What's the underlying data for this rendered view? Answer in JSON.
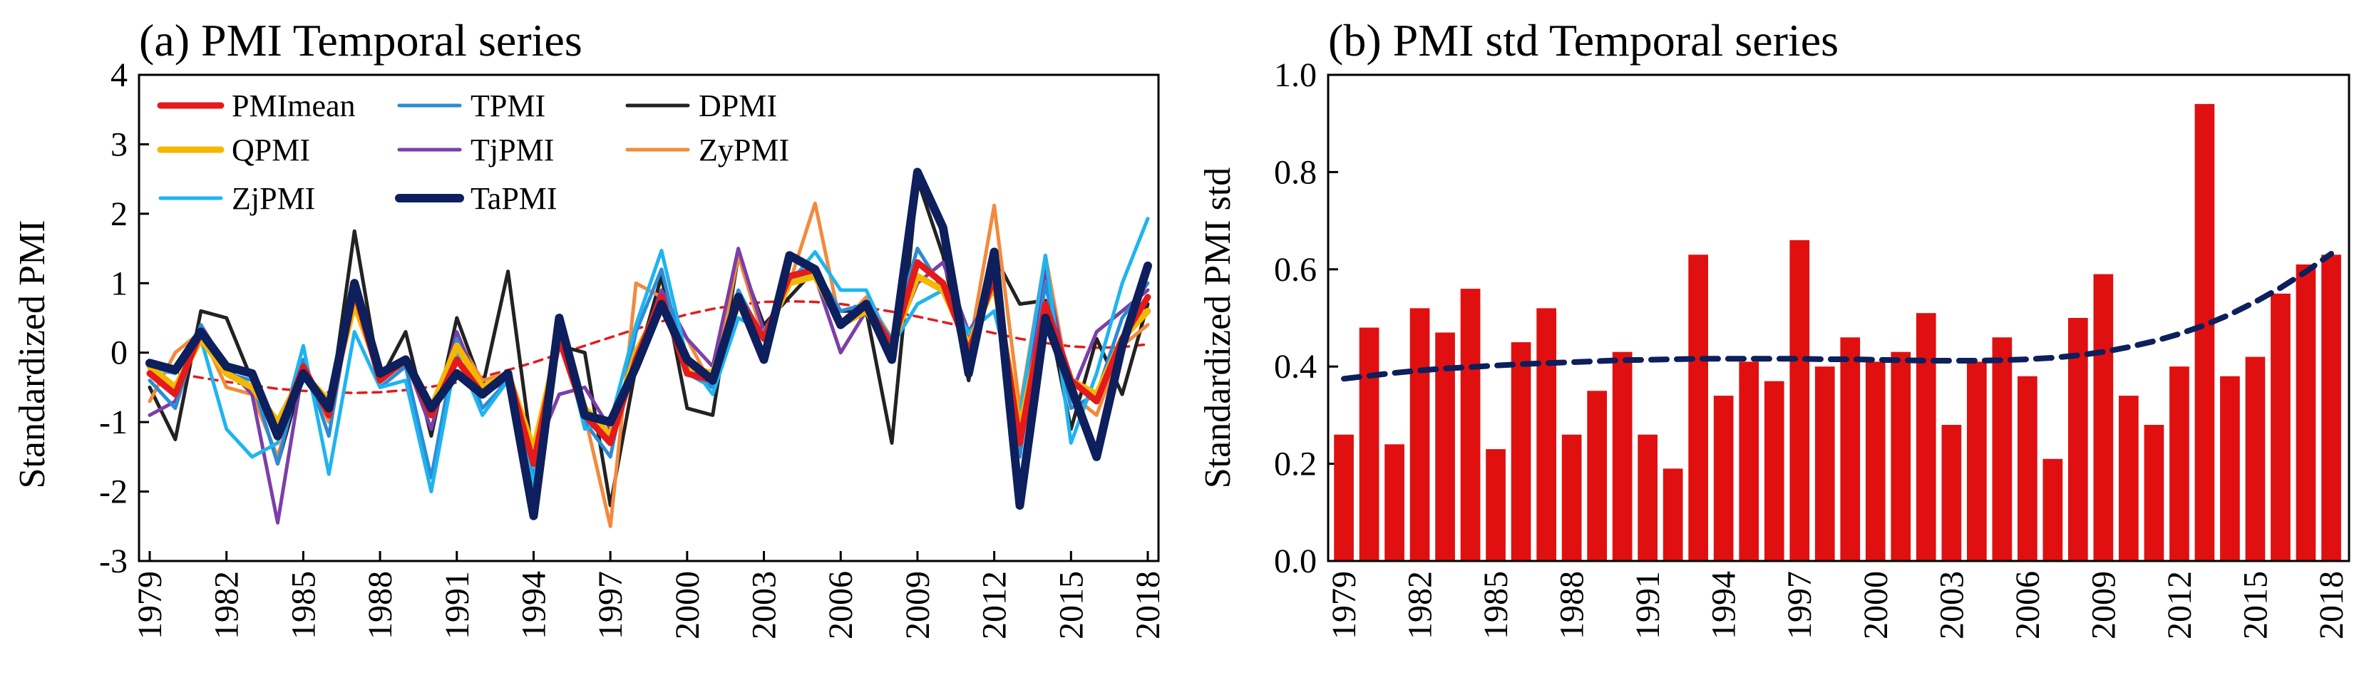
{
  "chart_data": [
    {
      "type": "line",
      "title": "(a)  PMI Temporal series",
      "ylabel": "Standardized PMI",
      "xlabel": "",
      "ylim": [
        -3,
        4
      ],
      "yticks": [
        "-3",
        "-2",
        "-1",
        "0",
        "1",
        "2",
        "3",
        "4"
      ],
      "xticks": [
        "1979",
        "1982",
        "1985",
        "1988",
        "1991",
        "1994",
        "1997",
        "2000",
        "2003",
        "2006",
        "2009",
        "2012",
        "2015",
        "2018"
      ],
      "years": [
        1979,
        1980,
        1981,
        1982,
        1983,
        1984,
        1985,
        1986,
        1987,
        1988,
        1989,
        1990,
        1991,
        1992,
        1993,
        1994,
        1995,
        1996,
        1997,
        1998,
        1999,
        2000,
        2001,
        2002,
        2003,
        2004,
        2005,
        2006,
        2007,
        2008,
        2009,
        2010,
        2011,
        2012,
        2013,
        2014,
        2015,
        2016,
        2017,
        2018
      ],
      "series": [
        {
          "name": "PMImean",
          "color": "#e41a1c",
          "width": 9,
          "dash": "",
          "values": [
            -0.3,
            -0.6,
            0.3,
            -0.2,
            -0.3,
            -1.2,
            -0.2,
            -0.9,
            0.9,
            -0.4,
            -0.1,
            -0.9,
            -0.1,
            -0.6,
            -0.3,
            -1.6,
            0.2,
            -0.9,
            -1.3,
            -0.1,
            0.8,
            -0.3,
            -0.4,
            0.8,
            0.2,
            1.1,
            1.2,
            0.4,
            0.7,
            0.1,
            1.3,
            1.0,
            0.0,
            1.1,
            -1.3,
            0.7,
            -0.4,
            -0.7,
            0.2,
            0.8
          ]
        },
        {
          "name": "TPMI",
          "color": "#2b8cd6",
          "width": 5,
          "dash": "",
          "values": [
            -0.4,
            -0.8,
            0.4,
            -0.3,
            -0.4,
            -1.6,
            -0.1,
            -1.2,
            1.0,
            -0.5,
            -0.2,
            -1.8,
            0.2,
            -0.8,
            -0.4,
            -1.8,
            0.4,
            -1.0,
            -1.5,
            0.3,
            1.2,
            -0.3,
            -0.5,
            0.9,
            0.2,
            1.0,
            1.2,
            0.6,
            0.7,
            0.2,
            1.5,
            0.9,
            0.2,
            1.0,
            -1.5,
            1.0,
            -0.8,
            -0.6,
            0.5,
            1.0
          ]
        },
        {
          "name": "DPMI",
          "color": "#222222",
          "width": 5,
          "dash": "",
          "values": [
            -0.5,
            -1.25,
            0.6,
            0.5,
            -0.4,
            -1.6,
            -0.3,
            -0.9,
            1.75,
            -0.4,
            0.3,
            -1.2,
            0.5,
            -0.5,
            1.17,
            -1.6,
            0.1,
            0.0,
            -2.2,
            -0.2,
            1.1,
            -0.8,
            -0.9,
            1.4,
            0.4,
            0.8,
            1.2,
            0.6,
            0.6,
            -1.3,
            2.5,
            1.4,
            -0.4,
            1.4,
            0.7,
            0.75,
            -1.1,
            0.2,
            -0.6,
            0.7
          ]
        },
        {
          "name": "QPMI",
          "color": "#f5b800",
          "width": 9,
          "dash": "",
          "values": [
            -0.2,
            -0.5,
            0.2,
            -0.3,
            -0.5,
            -1.0,
            -0.3,
            -0.7,
            0.7,
            -0.3,
            -0.1,
            -0.8,
            0.1,
            -0.5,
            -0.3,
            -1.4,
            0.2,
            -0.8,
            -1.2,
            0.0,
            0.7,
            -0.2,
            -0.3,
            0.7,
            0.2,
            1.0,
            1.1,
            0.4,
            0.6,
            0.1,
            1.1,
            0.9,
            0.1,
            1.0,
            -1.1,
            0.6,
            -0.4,
            -0.6,
            0.2,
            0.6
          ]
        },
        {
          "name": "TjPMI",
          "color": "#7b3fa8",
          "width": 5,
          "dash": "",
          "values": [
            -0.9,
            -0.7,
            0.4,
            -0.2,
            -0.6,
            -2.45,
            -0.2,
            -0.9,
            1.0,
            -0.4,
            -0.1,
            -1.1,
            0.3,
            -0.6,
            -0.4,
            -1.5,
            -0.6,
            -0.5,
            -1.1,
            -0.1,
            0.9,
            0.2,
            -0.2,
            1.5,
            0.3,
            1.0,
            1.1,
            0.0,
            0.6,
            0.1,
            1.0,
            1.3,
            0.3,
            0.9,
            -1.3,
            1.2,
            -0.6,
            0.3,
            0.6,
            0.9
          ]
        },
        {
          "name": "ZyPMI",
          "color": "#f28a3c",
          "width": 5,
          "dash": "",
          "values": [
            -0.7,
            0.0,
            0.3,
            -0.5,
            -0.6,
            -1.5,
            -0.2,
            -1.0,
            0.8,
            -0.3,
            -0.2,
            -0.9,
            0.2,
            -0.4,
            -0.3,
            -1.5,
            0.3,
            -0.9,
            -2.5,
            1.0,
            0.8,
            0.2,
            -0.5,
            1.4,
            0.2,
            1.0,
            2.15,
            0.4,
            0.8,
            0.2,
            1.5,
            0.9,
            0.0,
            2.12,
            -0.8,
            1.4,
            -0.6,
            -0.9,
            0.1,
            0.4
          ]
        },
        {
          "name": "ZjPMI",
          "color": "#1eb4f0",
          "width": 5,
          "dash": "",
          "values": [
            -0.2,
            -0.3,
            0.2,
            -1.1,
            -1.5,
            -1.3,
            0.1,
            -1.75,
            0.3,
            -0.5,
            -0.4,
            -2.0,
            0.0,
            -0.9,
            -0.4,
            -1.9,
            0.4,
            -1.1,
            -1.0,
            0.4,
            1.47,
            -0.1,
            -0.6,
            0.5,
            0.3,
            1.0,
            1.45,
            0.9,
            0.9,
            0.1,
            0.7,
            0.9,
            0.3,
            0.6,
            -0.9,
            1.4,
            -1.3,
            -0.3,
            1.0,
            1.93
          ]
        },
        {
          "name": "TaPMI",
          "color": "#0d1f5c",
          "width": 12,
          "dash": "",
          "values": [
            -0.15,
            -0.25,
            0.3,
            -0.2,
            -0.3,
            -1.2,
            -0.3,
            -0.8,
            1.0,
            -0.3,
            -0.1,
            -0.8,
            -0.3,
            -0.6,
            -0.3,
            -2.35,
            0.5,
            -0.9,
            -1.0,
            -0.2,
            0.7,
            -0.1,
            -0.4,
            0.8,
            -0.1,
            1.4,
            1.2,
            0.4,
            0.7,
            -0.1,
            2.6,
            1.8,
            -0.3,
            1.45,
            -2.2,
            0.5,
            -0.5,
            -1.5,
            0.1,
            1.25
          ]
        },
        {
          "name": "PMImean fit",
          "color": "#e41a1c",
          "width": 3.5,
          "dash": "12,9",
          "values": [
            -0.25,
            -0.3,
            -0.36,
            -0.42,
            -0.47,
            -0.52,
            -0.55,
            -0.57,
            -0.58,
            -0.57,
            -0.54,
            -0.49,
            -0.43,
            -0.35,
            -0.25,
            -0.14,
            -0.02,
            0.1,
            0.22,
            0.34,
            0.45,
            0.55,
            0.63,
            0.69,
            0.73,
            0.74,
            0.73,
            0.7,
            0.65,
            0.59,
            0.52,
            0.44,
            0.36,
            0.28,
            0.2,
            0.14,
            0.09,
            0.07,
            0.08,
            0.12
          ]
        }
      ],
      "legend": [
        "PMImean",
        "TPMI",
        "DPMI",
        "QPMI",
        "TjPMI",
        "ZyPMI",
        "ZjPMI",
        "TaPMI"
      ],
      "legend_placement": "top-left"
    },
    {
      "type": "bar",
      "title": "(b) PMI std Temporal series",
      "ylabel": "Standardized PMI std",
      "xlabel": "",
      "ylim": [
        0,
        1.0
      ],
      "yticks": [
        "0.0",
        "0.2",
        "0.4",
        "0.6",
        "0.8",
        "1.0"
      ],
      "xticks": [
        "1979",
        "1982",
        "1985",
        "1988",
        "1991",
        "1994",
        "1997",
        "2000",
        "2003",
        "2006",
        "2009",
        "2012",
        "2015",
        "2018"
      ],
      "years": [
        1979,
        1980,
        1981,
        1982,
        1983,
        1984,
        1985,
        1986,
        1987,
        1988,
        1989,
        1990,
        1991,
        1992,
        1993,
        1994,
        1995,
        1996,
        1997,
        1998,
        1999,
        2000,
        2001,
        2002,
        2003,
        2004,
        2005,
        2006,
        2007,
        2008,
        2009,
        2010,
        2011,
        2012,
        2013,
        2014,
        2015,
        2016,
        2017,
        2018
      ],
      "values": [
        0.26,
        0.48,
        0.24,
        0.52,
        0.47,
        0.56,
        0.23,
        0.45,
        0.52,
        0.26,
        0.35,
        0.43,
        0.26,
        0.19,
        0.63,
        0.34,
        0.41,
        0.37,
        0.66,
        0.4,
        0.46,
        0.41,
        0.43,
        0.51,
        0.28,
        0.41,
        0.46,
        0.38,
        0.21,
        0.5,
        0.59,
        0.34,
        0.28,
        0.4,
        0.94,
        0.38,
        0.42,
        0.55,
        0.61,
        0.63
      ],
      "bar_color": "#e01010",
      "trend": {
        "name": "trend",
        "color": "#0d1f5c",
        "values": [
          0.375,
          0.381,
          0.387,
          0.392,
          0.396,
          0.399,
          0.402,
          0.405,
          0.407,
          0.409,
          0.411,
          0.413,
          0.414,
          0.415,
          0.416,
          0.416,
          0.416,
          0.416,
          0.416,
          0.415,
          0.415,
          0.414,
          0.413,
          0.412,
          0.412,
          0.412,
          0.413,
          0.415,
          0.418,
          0.423,
          0.43,
          0.44,
          0.452,
          0.467,
          0.485,
          0.507,
          0.533,
          0.562,
          0.595,
          0.632
        ]
      }
    }
  ]
}
